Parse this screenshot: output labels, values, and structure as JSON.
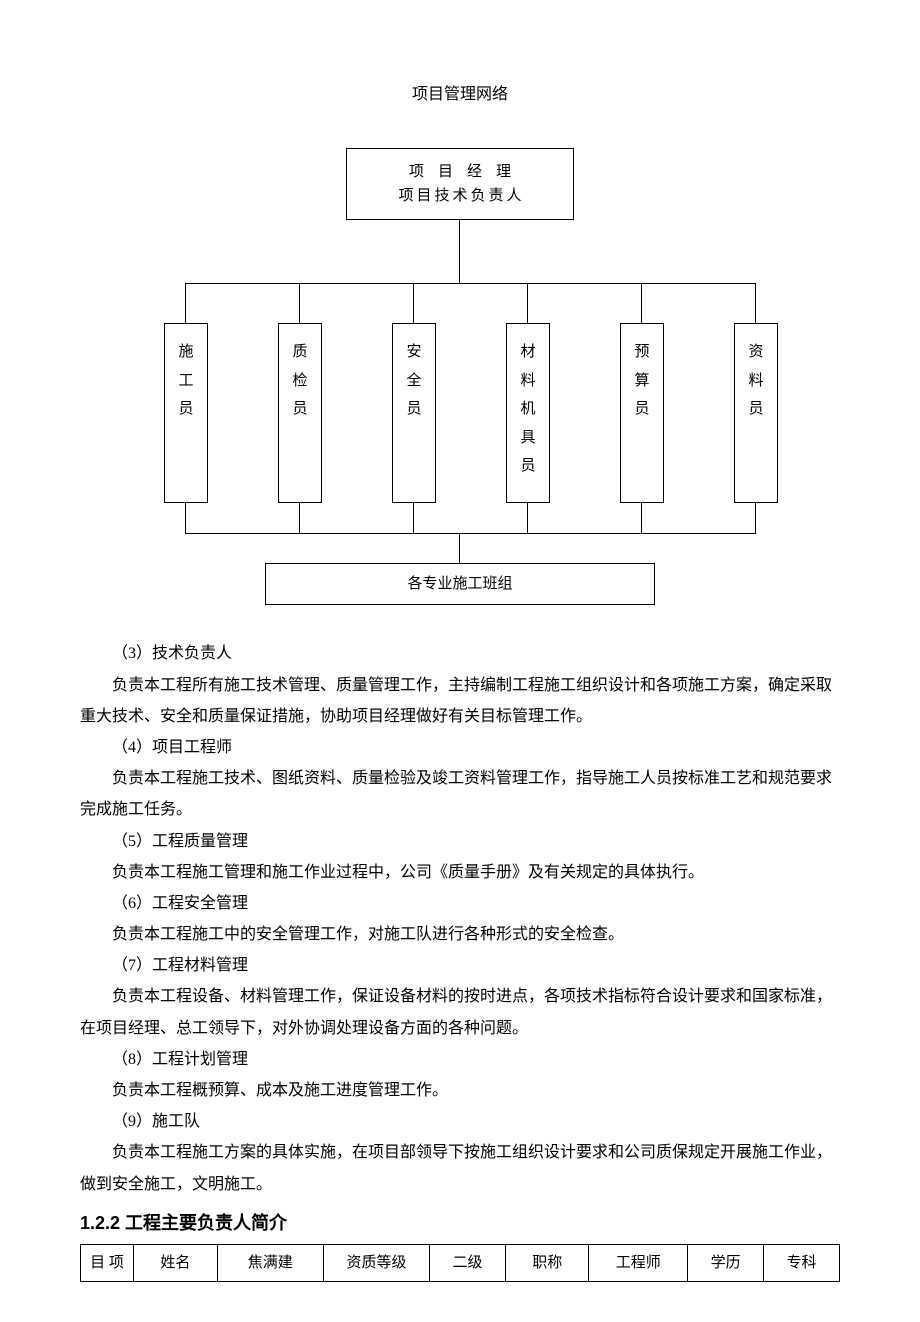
{
  "chart": {
    "title": "项目管理网络",
    "top": {
      "line1": "项目经理",
      "line2": "项目技术负责人"
    },
    "mid_nodes": [
      "施工员",
      "质检员",
      "安全员",
      "材料机具员",
      "预算员",
      "资料员"
    ],
    "mid_positions_x": [
      84,
      198,
      312,
      426,
      540,
      654
    ],
    "bottom": "各专业施工班组",
    "colors": {
      "line": "#000000",
      "bg": "#ffffff"
    },
    "box_border_width": 1,
    "font_size": 15
  },
  "paragraphs": [
    {
      "t": "（3）技术负责人",
      "indent": true
    },
    {
      "t": "负责本工程所有施工技术管理、质量管理工作，主持编制工程施工组织设计和各项施工方案，确定采取重大技术、安全和质量保证措施，协助项目经理做好有关目标管理工作。",
      "indent": true,
      "noindent": true,
      "firstIndent": true
    },
    {
      "t": "（4）项目工程师",
      "indent": true
    },
    {
      "t": "负责本工程施工技术、图纸资料、质量检验及竣工资料管理工作，指导施工人员按标准工艺和规范要求完成施工任务。",
      "indent": true,
      "firstIndent": true
    },
    {
      "t": "（5）工程质量管理",
      "indent": true
    },
    {
      "t": "负责本工程施工管理和施工作业过程中，公司《质量手册》及有关规定的具体执行。",
      "indent": true,
      "firstIndent": true
    },
    {
      "t": "（6）工程安全管理",
      "indent": true
    },
    {
      "t": "负责本工程施工中的安全管理工作，对施工队进行各种形式的安全检查。",
      "indent": true,
      "firstIndent": true
    },
    {
      "t": "（7）工程材料管理",
      "indent": true
    },
    {
      "t": "负责本工程设备、材料管理工作，保证设备材料的按时进点，各项技术指标符合设计要求和国家标准，在项目经理、总工领导下，对外协调处理设备方面的各种问题。",
      "indent": true,
      "firstIndent": true
    },
    {
      "t": "（8）工程计划管理",
      "indent": true
    },
    {
      "t": "负责本工程概预算、成本及施工进度管理工作。",
      "indent": true,
      "firstIndent": true
    },
    {
      "t": "（9）施工队",
      "indent": true
    },
    {
      "t": "负责本工程施工方案的具体实施，在项目部领导下按施工组织设计要求和公司质保规定开展施工作业，做到安全施工，文明施工。",
      "indent": true,
      "firstIndent": true
    }
  ],
  "section_heading": "1.2.2 工程主要负责人简介",
  "table": {
    "columns": [
      "目  项",
      "姓名",
      "焦满建",
      "资质等级",
      "二级",
      "职称",
      "工程师",
      "学历",
      "专科"
    ],
    "col_widths_pct": [
      7,
      11,
      14,
      14,
      10,
      11,
      13,
      10,
      10
    ]
  }
}
